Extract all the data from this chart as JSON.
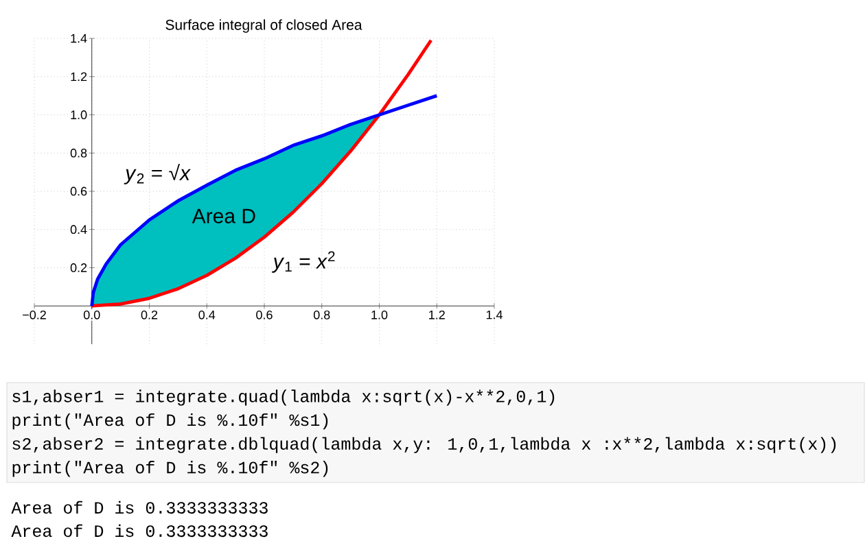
{
  "chart_data": {
    "type": "line",
    "title": "Surface integral of closed Area",
    "series": [
      {
        "color": "#ff0000",
        "x": [
          0,
          0.1,
          0.2,
          0.3,
          0.4,
          0.5,
          0.6,
          0.7,
          0.8,
          0.9,
          1.0,
          1.1,
          1.18
        ],
        "values": [
          0,
          0.01,
          0.04,
          0.09,
          0.16,
          0.25,
          0.36,
          0.49,
          0.64,
          0.81,
          1.0,
          1.21,
          1.39
        ]
      },
      {
        "color": "#0000ff",
        "x": [
          0,
          0.005,
          0.02,
          0.05,
          0.1,
          0.2,
          0.3,
          0.4,
          0.5,
          0.6,
          0.7,
          0.8,
          0.9,
          1.0,
          1.1,
          1.2
        ],
        "values": [
          0,
          0.07,
          0.14,
          0.22,
          0.32,
          0.45,
          0.55,
          0.632,
          0.71,
          0.77,
          0.84,
          0.89,
          0.95,
          1.0,
          1.05,
          1.1
        ],
        "upper": [
          0,
          0.07,
          0.14,
          0.22,
          0.32,
          0.45,
          0.55,
          0.632,
          0.71,
          0.77,
          0.84,
          0.89,
          0.95,
          1.0,
          null,
          null
        ],
        "lower": [
          0,
          0,
          0.0004,
          0.0025,
          0.01,
          0.04,
          0.09,
          0.16,
          0.25,
          0.36,
          0.49,
          0.64,
          0.81,
          1.0,
          null,
          null
        ]
      }
    ],
    "xlim": [
      -0.2,
      1.4
    ],
    "ylim": [
      -0.2,
      1.4
    ],
    "xticks": [
      {
        "value": -0.2,
        "label": "−0.2"
      },
      {
        "value": 0,
        "label": "0.0"
      },
      0.2,
      0.4,
      0.6,
      0.8,
      {
        "value": 1.0,
        "label": "1.0"
      },
      1.2,
      1.4
    ],
    "yticks": [
      0.2,
      0.4,
      0.6,
      0.8,
      {
        "value": 1.0,
        "label": "1.0"
      },
      1.2,
      1.4
    ],
    "grid": true,
    "annotations": [
      "*y*$_{2}$ = √*x*",
      "Area D",
      "*y*$_{1}$ = *x*$^{2}$",
      "s1,abser1 = integrate.quad(lambda x:sqrt(x)-x**2,0,1)",
      "print(\"Area of D is %.10f\" %s1)",
      "s2,abser2 = integrate.dblquad(lambda x,y: 1,0,1,lambda x :x**2,lambda x:sqrt(x))",
      "print(\"Area of D is %.10f\" %s2)",
      "Area of D is 0.3333333333",
      "Area of D is 0.3333333333"
    ]
  }
}
